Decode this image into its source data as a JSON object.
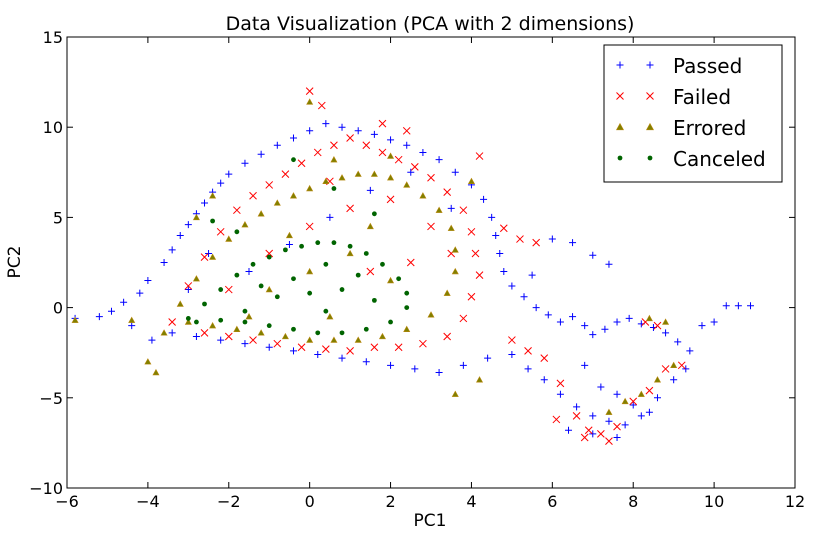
{
  "chart_data": {
    "type": "scatter",
    "title": "Data Visualization (PCA with 2 dimensions)",
    "xlabel": "PC1",
    "ylabel": "PC2",
    "xlim": [
      -6,
      12
    ],
    "ylim": [
      -10,
      15
    ],
    "xticks": [
      -6,
      -4,
      -2,
      0,
      2,
      4,
      6,
      8,
      10,
      12
    ],
    "yticks": [
      -10,
      -5,
      0,
      5,
      10,
      15
    ],
    "xtick_labels": [
      "−6",
      "−4",
      "−2",
      "0",
      "2",
      "4",
      "6",
      "8",
      "10",
      "12"
    ],
    "ytick_labels": [
      "−10",
      "−5",
      "0",
      "5",
      "10",
      "15"
    ],
    "grid": false,
    "legend_position": "top-right",
    "series": [
      {
        "name": "Passed",
        "marker": "plus",
        "color": "#0000ff",
        "points": [
          [
            -5.8,
            -0.6
          ],
          [
            -5.2,
            -0.5
          ],
          [
            -4.9,
            -0.2
          ],
          [
            -4.6,
            0.3
          ],
          [
            -4.4,
            -1.0
          ],
          [
            -4.2,
            0.8
          ],
          [
            -4.0,
            1.5
          ],
          [
            -3.9,
            -1.8
          ],
          [
            -3.6,
            2.5
          ],
          [
            -3.4,
            3.2
          ],
          [
            -3.2,
            4.0
          ],
          [
            -3.0,
            4.6
          ],
          [
            -2.8,
            5.2
          ],
          [
            -2.6,
            5.8
          ],
          [
            -2.4,
            6.4
          ],
          [
            -2.2,
            6.9
          ],
          [
            -2.0,
            7.4
          ],
          [
            -1.6,
            8.0
          ],
          [
            -1.2,
            8.5
          ],
          [
            -0.8,
            9.0
          ],
          [
            -0.4,
            9.4
          ],
          [
            0.0,
            9.8
          ],
          [
            0.4,
            10.2
          ],
          [
            0.8,
            10.0
          ],
          [
            1.2,
            9.8
          ],
          [
            1.6,
            9.6
          ],
          [
            2.0,
            9.3
          ],
          [
            2.4,
            9.0
          ],
          [
            2.8,
            8.6
          ],
          [
            3.2,
            8.2
          ],
          [
            3.6,
            7.5
          ],
          [
            4.0,
            6.8
          ],
          [
            4.3,
            6.0
          ],
          [
            4.5,
            5.0
          ],
          [
            4.6,
            4.0
          ],
          [
            4.7,
            3.0
          ],
          [
            4.8,
            2.0
          ],
          [
            5.0,
            1.2
          ],
          [
            5.3,
            0.6
          ],
          [
            5.6,
            0.0
          ],
          [
            5.9,
            -0.4
          ],
          [
            6.2,
            -0.8
          ],
          [
            6.5,
            -0.5
          ],
          [
            6.8,
            -1.0
          ],
          [
            7.0,
            -1.5
          ],
          [
            7.3,
            -1.2
          ],
          [
            7.6,
            -0.8
          ],
          [
            7.9,
            -0.6
          ],
          [
            8.2,
            -0.9
          ],
          [
            8.5,
            -1.1
          ],
          [
            8.8,
            -1.4
          ],
          [
            9.1,
            -1.9
          ],
          [
            9.4,
            -2.4
          ],
          [
            9.7,
            -1.0
          ],
          [
            10.0,
            -0.8
          ],
          [
            10.3,
            0.1
          ],
          [
            10.6,
            0.1
          ],
          [
            10.9,
            0.1
          ],
          [
            6.0,
            3.8
          ],
          [
            6.5,
            3.6
          ],
          [
            7.0,
            2.9
          ],
          [
            7.4,
            2.4
          ],
          [
            5.5,
            1.8
          ],
          [
            5.0,
            -2.6
          ],
          [
            5.4,
            -3.4
          ],
          [
            5.8,
            -4.0
          ],
          [
            6.2,
            -4.8
          ],
          [
            6.6,
            -5.5
          ],
          [
            7.0,
            -6.0
          ],
          [
            7.4,
            -6.3
          ],
          [
            7.8,
            -6.5
          ],
          [
            8.2,
            -6.0
          ],
          [
            8.6,
            -5.0
          ],
          [
            9.0,
            -4.0
          ],
          [
            9.3,
            -3.4
          ],
          [
            6.8,
            -3.2
          ],
          [
            7.2,
            -4.4
          ],
          [
            7.6,
            -4.8
          ],
          [
            8.0,
            -5.4
          ],
          [
            8.4,
            -5.8
          ],
          [
            7.0,
            -7.0
          ],
          [
            7.6,
            -7.2
          ],
          [
            6.4,
            -6.8
          ],
          [
            4.4,
            -2.8
          ],
          [
            3.8,
            -3.2
          ],
          [
            3.2,
            -3.6
          ],
          [
            2.6,
            -3.4
          ],
          [
            2.0,
            -3.2
          ],
          [
            1.4,
            -3.0
          ],
          [
            0.8,
            -2.8
          ],
          [
            0.2,
            -2.6
          ],
          [
            -0.4,
            -2.4
          ],
          [
            -1.0,
            -2.2
          ],
          [
            -1.6,
            -2.0
          ],
          [
            -2.2,
            -1.8
          ],
          [
            -2.8,
            -1.6
          ],
          [
            -3.4,
            -1.4
          ],
          [
            -1.5,
            2.0
          ],
          [
            -0.5,
            3.5
          ],
          [
            0.5,
            5.0
          ],
          [
            1.5,
            6.5
          ],
          [
            2.5,
            7.5
          ],
          [
            3.5,
            5.5
          ],
          [
            -2.5,
            3.0
          ],
          [
            -3.0,
            1.0
          ]
        ]
      },
      {
        "name": "Failed",
        "marker": "x",
        "color": "#ff0000",
        "points": [
          [
            -3.4,
            -0.8
          ],
          [
            -3.0,
            1.2
          ],
          [
            -2.6,
            2.8
          ],
          [
            -2.2,
            4.2
          ],
          [
            -1.8,
            5.4
          ],
          [
            -1.4,
            6.2
          ],
          [
            -1.0,
            6.8
          ],
          [
            -0.6,
            7.4
          ],
          [
            -0.2,
            8.0
          ],
          [
            0.2,
            8.6
          ],
          [
            0.6,
            9.0
          ],
          [
            1.0,
            9.4
          ],
          [
            1.4,
            9.0
          ],
          [
            1.8,
            8.6
          ],
          [
            2.2,
            8.2
          ],
          [
            2.6,
            7.8
          ],
          [
            3.0,
            7.2
          ],
          [
            3.4,
            6.4
          ],
          [
            3.8,
            5.4
          ],
          [
            4.0,
            4.2
          ],
          [
            4.1,
            3.0
          ],
          [
            4.2,
            1.8
          ],
          [
            4.0,
            0.6
          ],
          [
            3.8,
            -0.6
          ],
          [
            3.4,
            -1.6
          ],
          [
            2.8,
            -2.0
          ],
          [
            2.2,
            -2.2
          ],
          [
            1.6,
            -2.2
          ],
          [
            1.0,
            -2.4
          ],
          [
            0.4,
            -2.3
          ],
          [
            -0.2,
            -2.2
          ],
          [
            -0.8,
            -2.0
          ],
          [
            -1.4,
            -1.8
          ],
          [
            -2.0,
            -1.6
          ],
          [
            -2.6,
            -1.4
          ],
          [
            0.0,
            12.0
          ],
          [
            0.3,
            11.2
          ],
          [
            1.8,
            10.2
          ],
          [
            2.4,
            9.8
          ],
          [
            4.2,
            8.4
          ],
          [
            4.8,
            4.4
          ],
          [
            5.2,
            3.8
          ],
          [
            5.6,
            3.6
          ],
          [
            5.0,
            -1.8
          ],
          [
            5.4,
            -2.4
          ],
          [
            5.8,
            -2.8
          ],
          [
            6.2,
            -4.2
          ],
          [
            6.6,
            -6.0
          ],
          [
            6.9,
            -6.8
          ],
          [
            7.2,
            -7.0
          ],
          [
            7.6,
            -6.6
          ],
          [
            8.0,
            -5.2
          ],
          [
            8.4,
            -4.6
          ],
          [
            8.8,
            -3.4
          ],
          [
            9.2,
            -3.2
          ],
          [
            8.3,
            -0.8
          ],
          [
            8.6,
            -1.0
          ],
          [
            6.8,
            -7.2
          ],
          [
            7.4,
            -7.4
          ],
          [
            6.1,
            -6.2
          ],
          [
            -1.0,
            3.0
          ],
          [
            0.0,
            4.5
          ],
          [
            1.0,
            5.5
          ],
          [
            2.0,
            6.0
          ],
          [
            3.0,
            4.5
          ],
          [
            1.5,
            2.0
          ],
          [
            2.5,
            2.5
          ],
          [
            3.5,
            3.0
          ],
          [
            -2.0,
            1.0
          ],
          [
            0.5,
            7.0
          ]
        ]
      },
      {
        "name": "Errored",
        "marker": "triangle",
        "color": "#808000",
        "points": [
          [
            -5.8,
            -0.7
          ],
          [
            -4.4,
            -0.7
          ],
          [
            -3.6,
            -1.4
          ],
          [
            -3.2,
            0.2
          ],
          [
            -2.8,
            1.6
          ],
          [
            -2.4,
            2.8
          ],
          [
            -2.0,
            3.8
          ],
          [
            -1.6,
            4.6
          ],
          [
            -1.2,
            5.2
          ],
          [
            -0.8,
            5.8
          ],
          [
            -0.4,
            6.2
          ],
          [
            0.0,
            6.6
          ],
          [
            0.4,
            7.0
          ],
          [
            0.8,
            7.2
          ],
          [
            1.2,
            7.4
          ],
          [
            1.6,
            7.4
          ],
          [
            2.0,
            7.2
          ],
          [
            2.4,
            6.8
          ],
          [
            2.8,
            6.2
          ],
          [
            3.2,
            5.4
          ],
          [
            3.5,
            4.4
          ],
          [
            3.6,
            3.2
          ],
          [
            3.6,
            2.0
          ],
          [
            3.4,
            0.8
          ],
          [
            3.0,
            -0.4
          ],
          [
            2.4,
            -1.2
          ],
          [
            1.8,
            -1.6
          ],
          [
            1.2,
            -1.8
          ],
          [
            0.6,
            -1.8
          ],
          [
            0.0,
            -1.8
          ],
          [
            -0.6,
            -1.6
          ],
          [
            -1.2,
            -1.4
          ],
          [
            -1.8,
            -1.2
          ],
          [
            -2.4,
            -1.0
          ],
          [
            -3.0,
            -0.8
          ],
          [
            0.0,
            11.4
          ],
          [
            0.6,
            8.2
          ],
          [
            2.0,
            8.4
          ],
          [
            4.0,
            7.0
          ],
          [
            -2.4,
            6.2
          ],
          [
            -2.8,
            5.0
          ],
          [
            -3.8,
            -3.6
          ],
          [
            -4.0,
            -3.0
          ],
          [
            4.2,
            -4.0
          ],
          [
            3.6,
            -4.8
          ],
          [
            7.4,
            -5.8
          ],
          [
            7.8,
            -5.2
          ],
          [
            8.2,
            -4.8
          ],
          [
            8.6,
            -4.0
          ],
          [
            9.0,
            -3.2
          ],
          [
            8.4,
            -0.6
          ],
          [
            8.8,
            -0.8
          ],
          [
            -1.0,
            1.0
          ],
          [
            0.0,
            2.0
          ],
          [
            1.0,
            3.0
          ],
          [
            2.0,
            1.5
          ],
          [
            -1.5,
            -0.5
          ],
          [
            0.5,
            -0.5
          ],
          [
            1.5,
            4.5
          ],
          [
            -0.5,
            4.0
          ]
        ]
      },
      {
        "name": "Canceled",
        "marker": "circle",
        "color": "#006400",
        "points": [
          [
            -3.0,
            -0.6
          ],
          [
            -2.6,
            0.2
          ],
          [
            -2.2,
            1.0
          ],
          [
            -1.8,
            1.8
          ],
          [
            -1.4,
            2.4
          ],
          [
            -1.0,
            2.8
          ],
          [
            -0.6,
            3.2
          ],
          [
            -0.2,
            3.4
          ],
          [
            0.2,
            3.6
          ],
          [
            0.6,
            3.6
          ],
          [
            1.0,
            3.4
          ],
          [
            1.4,
            3.0
          ],
          [
            1.8,
            2.4
          ],
          [
            2.2,
            1.6
          ],
          [
            2.4,
            0.8
          ],
          [
            2.4,
            0.0
          ],
          [
            2.0,
            -0.8
          ],
          [
            1.4,
            -1.2
          ],
          [
            0.8,
            -1.4
          ],
          [
            0.2,
            -1.4
          ],
          [
            -0.4,
            -1.2
          ],
          [
            -1.0,
            -1.0
          ],
          [
            -1.6,
            -0.8
          ],
          [
            -2.2,
            -0.7
          ],
          [
            -2.8,
            -0.8
          ],
          [
            -0.4,
            8.2
          ],
          [
            0.6,
            6.6
          ],
          [
            1.6,
            5.2
          ],
          [
            -1.8,
            4.2
          ],
          [
            -2.4,
            4.8
          ],
          [
            -0.8,
            0.6
          ],
          [
            0.0,
            0.8
          ],
          [
            0.8,
            1.0
          ],
          [
            1.6,
            0.4
          ],
          [
            -1.6,
            -0.2
          ],
          [
            0.4,
            -0.2
          ],
          [
            -0.4,
            1.6
          ],
          [
            1.2,
            1.8
          ],
          [
            -1.2,
            1.2
          ],
          [
            0.4,
            2.4
          ]
        ]
      }
    ]
  }
}
